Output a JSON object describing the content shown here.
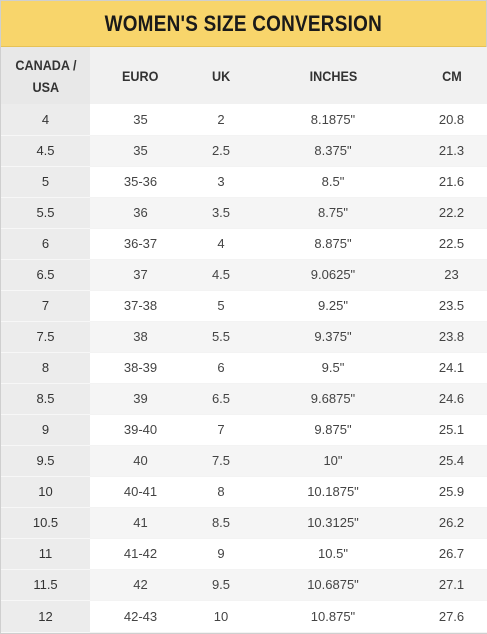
{
  "title": "WOMEN'S SIZE CONVERSION",
  "headers": {
    "canada_usa_line1": "CANADA /",
    "canada_usa_line2": "USA",
    "euro": "EURO",
    "uk": "UK",
    "inches": "INCHES",
    "cm": "CM"
  },
  "rows": [
    {
      "us": "4",
      "euro": "35",
      "uk": "2",
      "inches": "8.1875\"",
      "cm": "20.8"
    },
    {
      "us": "4.5",
      "euro": "35",
      "uk": "2.5",
      "inches": "8.375\"",
      "cm": "21.3"
    },
    {
      "us": "5",
      "euro": "35-36",
      "uk": "3",
      "inches": "8.5\"",
      "cm": "21.6"
    },
    {
      "us": "5.5",
      "euro": "36",
      "uk": "3.5",
      "inches": "8.75\"",
      "cm": "22.2"
    },
    {
      "us": "6",
      "euro": "36-37",
      "uk": "4",
      "inches": "8.875\"",
      "cm": "22.5"
    },
    {
      "us": "6.5",
      "euro": "37",
      "uk": "4.5",
      "inches": "9.0625\"",
      "cm": "23"
    },
    {
      "us": "7",
      "euro": "37-38",
      "uk": "5",
      "inches": "9.25\"",
      "cm": "23.5"
    },
    {
      "us": "7.5",
      "euro": "38",
      "uk": "5.5",
      "inches": "9.375\"",
      "cm": "23.8"
    },
    {
      "us": "8",
      "euro": "38-39",
      "uk": "6",
      "inches": "9.5\"",
      "cm": "24.1"
    },
    {
      "us": "8.5",
      "euro": "39",
      "uk": "6.5",
      "inches": "9.6875\"",
      "cm": "24.6"
    },
    {
      "us": "9",
      "euro": "39-40",
      "uk": "7",
      "inches": "9.875\"",
      "cm": "25.1"
    },
    {
      "us": "9.5",
      "euro": "40",
      "uk": "7.5",
      "inches": "10\"",
      "cm": "25.4"
    },
    {
      "us": "10",
      "euro": "40-41",
      "uk": "8",
      "inches": "10.1875\"",
      "cm": "25.9"
    },
    {
      "us": "10.5",
      "euro": "41",
      "uk": "8.5",
      "inches": "10.3125\"",
      "cm": "26.2"
    },
    {
      "us": "11",
      "euro": "41-42",
      "uk": "9",
      "inches": "10.5\"",
      "cm": "26.7"
    },
    {
      "us": "11.5",
      "euro": "42",
      "uk": "9.5",
      "inches": "10.6875\"",
      "cm": "27.1"
    },
    {
      "us": "12",
      "euro": "42-43",
      "uk": "10",
      "inches": "10.875\"",
      "cm": "27.6"
    }
  ],
  "colors": {
    "title_bg": "#f8d56b",
    "header_bg": "#f1f1f1",
    "first_col_bg": "#ececec",
    "alt_row_bg": "#f5f5f5"
  }
}
